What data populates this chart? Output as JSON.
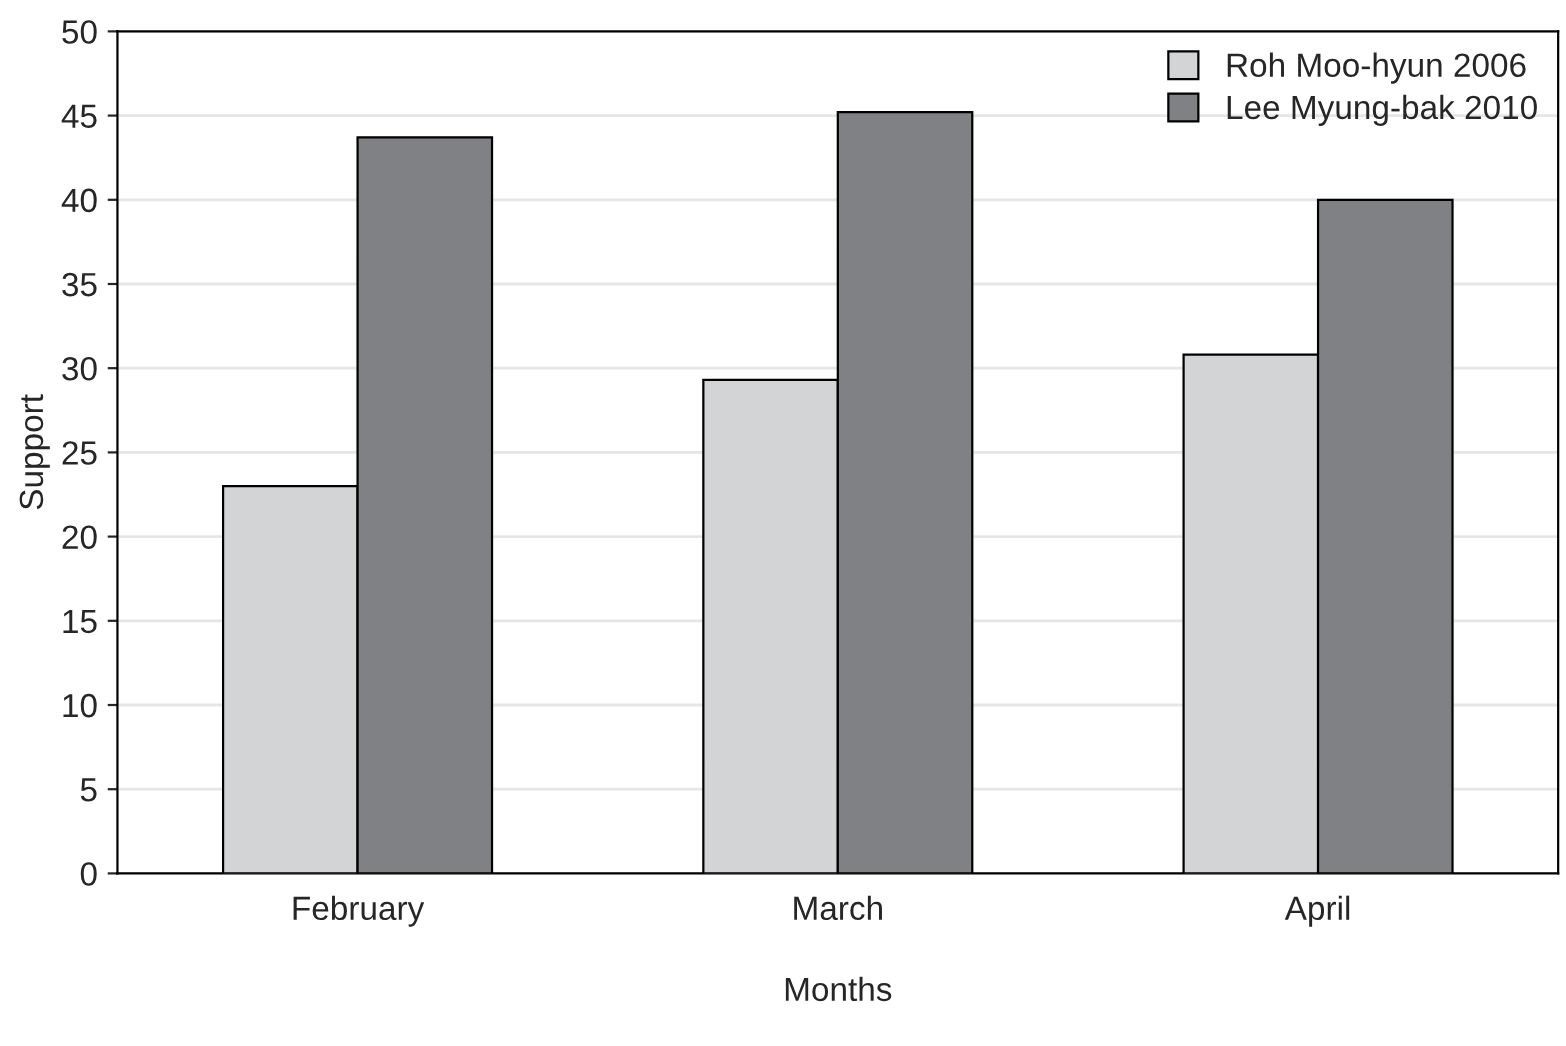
{
  "chart_data": {
    "type": "bar",
    "xlabel": "Months",
    "ylabel": "Support",
    "categories": [
      "February",
      "March",
      "April"
    ],
    "series": [
      {
        "name": "Roh Moo-hyun 2006",
        "color": "#d3d4d6",
        "values": [
          23.0,
          29.3,
          30.8
        ]
      },
      {
        "name": "Lee Myung-bak 2010",
        "color": "#808184",
        "values": [
          43.7,
          45.2,
          40.0
        ]
      }
    ],
    "ylim": [
      0,
      50
    ],
    "yticks": [
      0,
      5,
      10,
      15,
      20,
      25,
      30,
      35,
      40,
      45,
      50
    ],
    "grid": "y",
    "legend": "top right"
  }
}
